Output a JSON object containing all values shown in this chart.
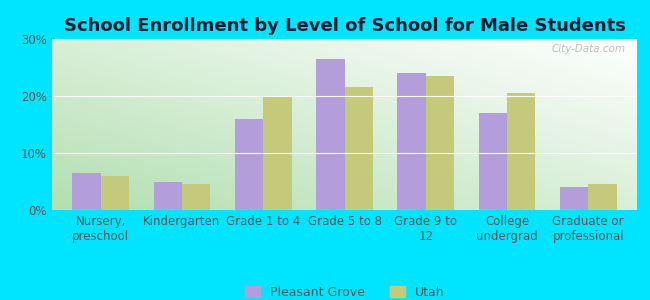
{
  "title": "School Enrollment by Level of School for Male Students",
  "categories": [
    "Nursery,\npreschool",
    "Kindergarten",
    "Grade 1 to 4",
    "Grade 5 to 8",
    "Grade 9 to\n12",
    "College\nundergrad",
    "Graduate or\nprofessional"
  ],
  "pleasant_grove": [
    6.5,
    5.0,
    16.0,
    26.5,
    24.0,
    17.0,
    4.0
  ],
  "utah": [
    6.0,
    4.5,
    20.0,
    21.5,
    23.5,
    20.5,
    4.5
  ],
  "color_pg": "#b39ddb",
  "color_utah": "#c5c97a",
  "background_fig": "#00e5ff",
  "gradient_color_bottom_left": "#b2dfb0",
  "gradient_color_top_right": "#ffffff",
  "ylim": [
    0,
    30
  ],
  "yticks": [
    0,
    10,
    20,
    30
  ],
  "ytick_labels": [
    "0%",
    "10%",
    "20%",
    "30%"
  ],
  "legend_pg": "Pleasant Grove",
  "legend_utah": "Utah",
  "watermark": "City-Data.com",
  "title_fontsize": 13,
  "tick_fontsize": 8.5,
  "title_color": "#1a1a2e"
}
